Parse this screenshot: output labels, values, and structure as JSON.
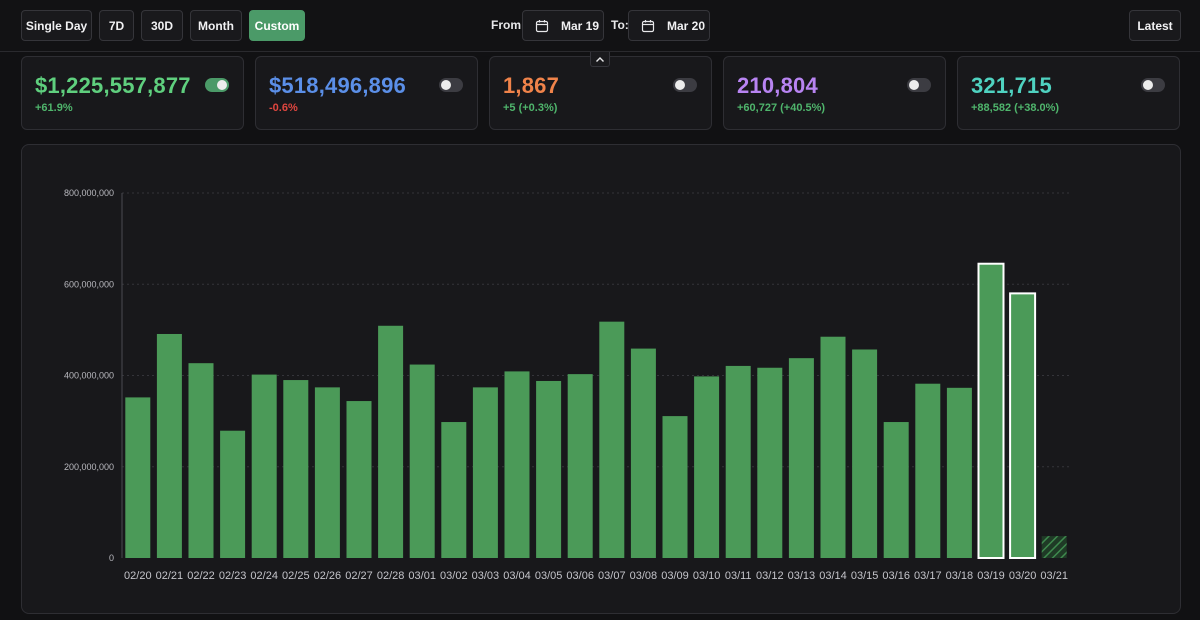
{
  "toolbar": {
    "range_buttons": [
      {
        "label": "Single Day",
        "active": false
      },
      {
        "label": "7D",
        "active": false
      },
      {
        "label": "30D",
        "active": false
      },
      {
        "label": "Month",
        "active": false
      },
      {
        "label": "Custom",
        "active": true
      }
    ],
    "from_label": "From:",
    "from_date": "Mar 19",
    "to_label": "To:",
    "to_date": "Mar 20",
    "latest_label": "Latest",
    "calendar_icon": "calendar-icon",
    "collapse_icon": "chevron-up-icon"
  },
  "metrics": [
    {
      "value": "$1,225,557,877",
      "change": "+61.9%",
      "value_color": "#5fcf7e",
      "change_color": "#4fb56c",
      "toggle_on": true
    },
    {
      "value": "$518,496,896",
      "change": "-0.6%",
      "value_color": "#5b8fe8",
      "change_color": "#e0463f",
      "toggle_on": false
    },
    {
      "value": "1,867",
      "change": "+5 (+0.3%)",
      "value_color": "#f0834a",
      "change_color": "#4fb56c",
      "toggle_on": false
    },
    {
      "value": "210,804",
      "change": "+60,727 (+40.5%)",
      "value_color": "#b884f2",
      "change_color": "#4fb56c",
      "toggle_on": false
    },
    {
      "value": "321,715",
      "change": "+88,582 (+38.0%)",
      "value_color": "#4fd2c0",
      "change_color": "#4fb56c",
      "toggle_on": false
    }
  ],
  "colors": {
    "bar": "#4b9a58",
    "selected_outline": "#ffffff",
    "partial_hatch": "#3f8a4e"
  },
  "chart_data": {
    "type": "bar",
    "categories": [
      "02/20",
      "02/21",
      "02/22",
      "02/23",
      "02/24",
      "02/25",
      "02/26",
      "02/27",
      "02/28",
      "03/01",
      "03/02",
      "03/03",
      "03/04",
      "03/05",
      "03/06",
      "03/07",
      "03/08",
      "03/09",
      "03/10",
      "03/11",
      "03/12",
      "03/13",
      "03/14",
      "03/15",
      "03/16",
      "03/17",
      "03/18",
      "03/19",
      "03/20",
      "03/21"
    ],
    "values": [
      352000000,
      491000000,
      427000000,
      279000000,
      402000000,
      390000000,
      374000000,
      344000000,
      509000000,
      424000000,
      298000000,
      374000000,
      409000000,
      388000000,
      403000000,
      518000000,
      459000000,
      311000000,
      398000000,
      421000000,
      417000000,
      438000000,
      485000000,
      457000000,
      298000000,
      382000000,
      373000000,
      645000000,
      580000000,
      48000000
    ],
    "selected": [
      "03/19",
      "03/20"
    ],
    "partial": [
      "03/21"
    ],
    "yticks": [
      "0",
      "200,000,000",
      "400,000,000",
      "600,000,000",
      "800,000,000"
    ],
    "ylim": [
      0,
      800000000
    ],
    "grid": true
  }
}
